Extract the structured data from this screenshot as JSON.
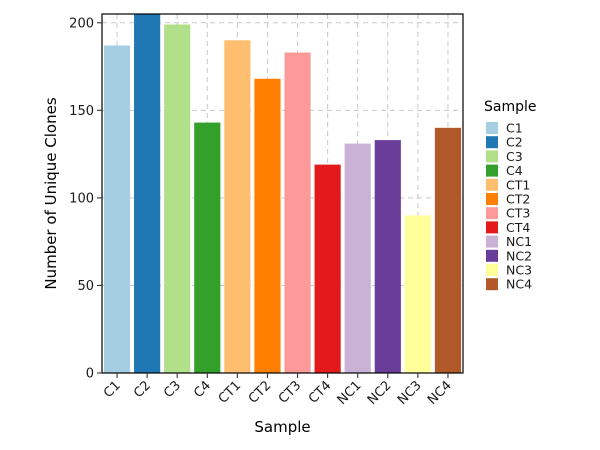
{
  "chart_data": {
    "type": "bar",
    "title": "",
    "xlabel": "Sample",
    "ylabel": "Number of Unique Clones",
    "ylim": [
      0,
      205
    ],
    "yticks": [
      0,
      50,
      100,
      150,
      200
    ],
    "grid": true,
    "legend": {
      "title": "Sample",
      "placement": "right"
    },
    "categories": [
      "C1",
      "C2",
      "C3",
      "C4",
      "CT1",
      "CT2",
      "CT3",
      "CT4",
      "NC1",
      "NC2",
      "NC3",
      "NC4"
    ],
    "values": [
      187,
      205,
      199,
      143,
      190,
      168,
      183,
      119,
      131,
      133,
      90,
      140
    ],
    "colors": [
      "#a6cee3",
      "#1f78b4",
      "#b2df8a",
      "#33a02c",
      "#fdbf6f",
      "#ff7f00",
      "#fb9a99",
      "#e31a1c",
      "#cab2d6",
      "#6a3d9a",
      "#ffff99",
      "#b15928"
    ]
  }
}
